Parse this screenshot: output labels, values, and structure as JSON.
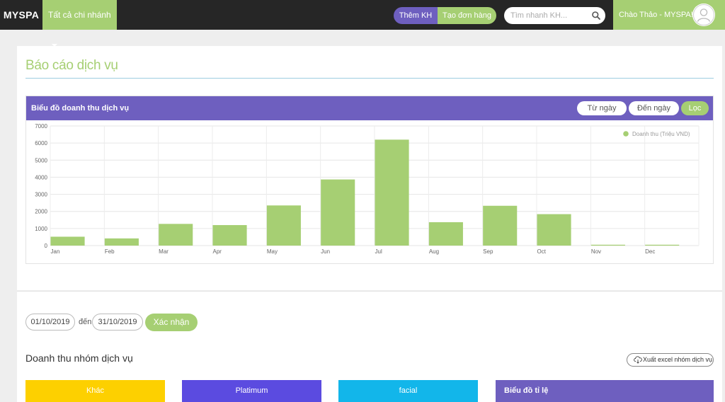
{
  "header": {
    "brand": "MYSPA",
    "branch_selector": "Tất cả chi nhánh",
    "add_customer": "Thêm KH",
    "create_order": "Tạo đơn hàng",
    "search_placeholder": "Tìm nhanh KH...",
    "greeting": "Chào Thảo - MYSPA!"
  },
  "page": {
    "title": "Báo cáo dịch vụ"
  },
  "chart_panel": {
    "title": "Biểu đồ doanh thu dịch vụ",
    "from_date_button": "Từ ngày",
    "to_date_button": "Đến ngày",
    "filter_button": "Lọc"
  },
  "chart_data": {
    "type": "bar",
    "categories": [
      "Jan",
      "Feb",
      "Mar",
      "Apr",
      "May",
      "Jun",
      "Jul",
      "Aug",
      "Sep",
      "Oct",
      "Nov",
      "Dec"
    ],
    "series": [
      {
        "name": "Doanh thu (Triệu VND)",
        "values": [
          520,
          420,
          1270,
          1200,
          2350,
          3870,
          6200,
          1370,
          2330,
          1840,
          50,
          50
        ],
        "color": "#a6cf73"
      }
    ],
    "yticks": [
      0,
      1000,
      2000,
      3000,
      4000,
      5000,
      6000,
      7000
    ],
    "ylim": [
      0,
      7000
    ],
    "grid": true,
    "legend_position": "top-right"
  },
  "filter": {
    "start_date": "01/10/2019",
    "to_text": "đến",
    "end_date": "31/10/2019",
    "confirm_button": "Xác nhận"
  },
  "service_groups": {
    "title": "Doanh thu nhóm dịch vụ",
    "export_button": "Xuất excel nhóm dịch vụ",
    "tiles": [
      {
        "label": "Khác",
        "color": "#fdd000"
      },
      {
        "label": "Platimum",
        "color": "#5b4be0"
      },
      {
        "label": "facial",
        "color": "#12b6ea"
      }
    ],
    "ratio_chart_title": "Biểu đồ tỉ lệ"
  }
}
